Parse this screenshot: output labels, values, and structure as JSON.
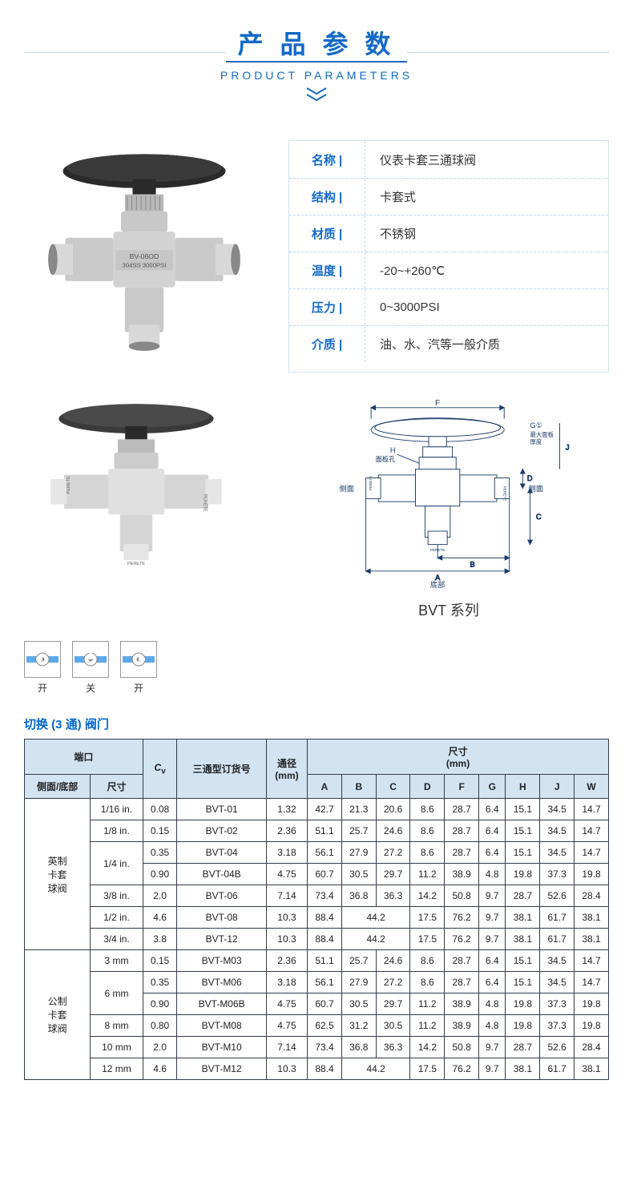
{
  "header": {
    "title_cn": "产 品 参 数",
    "title_en": "PRODUCT PARAMETERS"
  },
  "product_photo": {
    "body_text1": "BV-06OD",
    "body_text2": "304SS 3000PSI"
  },
  "params": [
    {
      "label": "名称 |",
      "value": "仪表卡套三通球阀"
    },
    {
      "label": "结构 |",
      "value": "卡套式"
    },
    {
      "label": "材质 |",
      "value": "不锈钢"
    },
    {
      "label": "温度 |",
      "value": "-20~+260℃"
    },
    {
      "label": "压力 |",
      "value": "0~3000PSI"
    },
    {
      "label": "介质 |",
      "value": "油、水、汽等一般介质"
    }
  ],
  "diagram": {
    "series_label": "BVT 系列",
    "dim_labels": {
      "A": "A",
      "B": "B",
      "C": "C",
      "D": "D",
      "F": "F",
      "G": "G①",
      "H": "H",
      "J": "J"
    },
    "text_panel_hole": "面板孔",
    "text_max_panel": "最大面板\n厚度",
    "text_side": "侧面",
    "text_bottom": "底部",
    "brand": "PERETE"
  },
  "states": [
    {
      "label": "开",
      "type": "open-left"
    },
    {
      "label": "关",
      "type": "closed"
    },
    {
      "label": "开",
      "type": "open-right"
    }
  ],
  "spec_section_title": "切换 (3 通) 阀门",
  "spec_headers": {
    "port": "端口",
    "cv": "Cᵥ",
    "order": "三通型订货号",
    "bore": "通径\n(mm)",
    "dims": "尺寸\n(mm)",
    "side_bottom": "侧面/底部",
    "size": "尺寸",
    "cols": [
      "A",
      "B",
      "C",
      "D",
      "F",
      "G",
      "H",
      "J",
      "W"
    ]
  },
  "spec_groups": [
    {
      "group_name": "英制\n卡套\n球阀",
      "rows": [
        {
          "size": "1/16 in.",
          "size_rowspan": 1,
          "cv": "0.08",
          "order": "BVT-01",
          "bore": "1.32",
          "A": "42.7",
          "B": "21.3",
          "C": "20.6",
          "bc_merge": false,
          "D": "8.6",
          "F": "28.7",
          "G": "6.4",
          "H": "15.1",
          "J": "34.5",
          "W": "14.7"
        },
        {
          "size": "1/8 in.",
          "size_rowspan": 1,
          "cv": "0.15",
          "order": "BVT-02",
          "bore": "2.36",
          "A": "51.1",
          "B": "25.7",
          "C": "24.6",
          "bc_merge": false,
          "D": "8.6",
          "F": "28.7",
          "G": "6.4",
          "H": "15.1",
          "J": "34.5",
          "W": "14.7"
        },
        {
          "size": "1/4 in.",
          "size_rowspan": 2,
          "cv": "0.35",
          "order": "BVT-04",
          "bore": "3.18",
          "A": "56.1",
          "B": "27.9",
          "C": "27.2",
          "bc_merge": false,
          "D": "8.6",
          "F": "28.7",
          "G": "6.4",
          "H": "15.1",
          "J": "34.5",
          "W": "14.7"
        },
        {
          "size": "",
          "size_rowspan": 0,
          "cv": "0.90",
          "order": "BVT-04B",
          "bore": "4.75",
          "A": "60.7",
          "B": "30.5",
          "C": "29.7",
          "bc_merge": false,
          "D": "11.2",
          "F": "38.9",
          "G": "4.8",
          "H": "19.8",
          "J": "37.3",
          "W": "19.8"
        },
        {
          "size": "3/8 in.",
          "size_rowspan": 1,
          "cv": "2.0",
          "order": "BVT-06",
          "bore": "7.14",
          "A": "73.4",
          "B": "36.8",
          "C": "36.3",
          "bc_merge": false,
          "D": "14.2",
          "F": "50.8",
          "G": "9.7",
          "H": "28.7",
          "J": "52.6",
          "W": "28.4"
        },
        {
          "size": "1/2 in.",
          "size_rowspan": 1,
          "cv": "4.6",
          "order": "BVT-08",
          "bore": "10.3",
          "A": "88.4",
          "B": "44.2",
          "C": "",
          "bc_merge": true,
          "D": "17.5",
          "F": "76.2",
          "G": "9.7",
          "H": "38.1",
          "J": "61.7",
          "W": "38.1"
        },
        {
          "size": "3/4 in.",
          "size_rowspan": 1,
          "cv": "3.8",
          "order": "BVT-12",
          "bore": "10.3",
          "A": "88.4",
          "B": "44.2",
          "C": "",
          "bc_merge": true,
          "D": "17.5",
          "F": "76.2",
          "G": "9.7",
          "H": "38.1",
          "J": "61.7",
          "W": "38.1"
        }
      ]
    },
    {
      "group_name": "公制\n卡套\n球阀",
      "rows": [
        {
          "size": "3 mm",
          "size_rowspan": 1,
          "cv": "0.15",
          "order": "BVT-M03",
          "bore": "2.36",
          "A": "51.1",
          "B": "25.7",
          "C": "24.6",
          "bc_merge": false,
          "D": "8.6",
          "F": "28.7",
          "G": "6.4",
          "H": "15.1",
          "J": "34.5",
          "W": "14.7"
        },
        {
          "size": "6 mm",
          "size_rowspan": 2,
          "cv": "0.35",
          "order": "BVT-M06",
          "bore": "3.18",
          "A": "56.1",
          "B": "27.9",
          "C": "27.2",
          "bc_merge": false,
          "D": "8.6",
          "F": "28.7",
          "G": "6.4",
          "H": "15.1",
          "J": "34.5",
          "W": "14.7"
        },
        {
          "size": "",
          "size_rowspan": 0,
          "cv": "0.90",
          "order": "BVT-M06B",
          "bore": "4.75",
          "A": "60.7",
          "B": "30.5",
          "C": "29.7",
          "bc_merge": false,
          "D": "11.2",
          "F": "38.9",
          "G": "4.8",
          "H": "19.8",
          "J": "37.3",
          "W": "19.8"
        },
        {
          "size": "8 mm",
          "size_rowspan": 1,
          "cv": "0.80",
          "order": "BVT-M08",
          "bore": "4.75",
          "A": "62.5",
          "B": "31.2",
          "C": "30.5",
          "bc_merge": false,
          "D": "11.2",
          "F": "38.9",
          "G": "4.8",
          "H": "19.8",
          "J": "37.3",
          "W": "19.8"
        },
        {
          "size": "10 mm",
          "size_rowspan": 1,
          "cv": "2.0",
          "order": "BVT-M10",
          "bore": "7.14",
          "A": "73.4",
          "B": "36.8",
          "C": "36.3",
          "bc_merge": false,
          "D": "14.2",
          "F": "50.8",
          "G": "9.7",
          "H": "28.7",
          "J": "52.6",
          "W": "28.4"
        },
        {
          "size": "12 mm",
          "size_rowspan": 1,
          "cv": "4.6",
          "order": "BVT-M12",
          "bore": "10.3",
          "A": "88.4",
          "B": "44.2",
          "C": "",
          "bc_merge": true,
          "D": "17.5",
          "F": "76.2",
          "G": "9.7",
          "H": "38.1",
          "J": "61.7",
          "W": "38.1"
        }
      ]
    }
  ]
}
